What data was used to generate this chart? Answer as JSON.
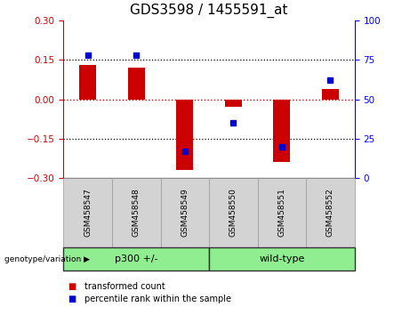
{
  "title": "GDS3598 / 1455591_at",
  "samples": [
    "GSM458547",
    "GSM458548",
    "GSM458549",
    "GSM458550",
    "GSM458551",
    "GSM458552"
  ],
  "transformed_count": [
    0.13,
    0.12,
    -0.27,
    -0.03,
    -0.24,
    0.04
  ],
  "percentile_rank": [
    78,
    78,
    17,
    35,
    20,
    62
  ],
  "ylim_left": [
    -0.3,
    0.3
  ],
  "ylim_right": [
    0,
    100
  ],
  "yticks_left": [
    -0.3,
    -0.15,
    0,
    0.15,
    0.3
  ],
  "yticks_right": [
    0,
    25,
    50,
    75,
    100
  ],
  "bar_color": "#cc0000",
  "point_color": "#0000cc",
  "groups": [
    {
      "label": "p300 +/-",
      "indices": [
        0,
        1,
        2
      ],
      "color": "#90ee90"
    },
    {
      "label": "wild-type",
      "indices": [
        3,
        4,
        5
      ],
      "color": "#90ee90"
    }
  ],
  "group_label_prefix": "genotype/variation",
  "legend_bar_label": "transformed count",
  "legend_point_label": "percentile rank within the sample",
  "hline_color": "#cc0000",
  "dotted_lines": [
    -0.15,
    0.15
  ],
  "background_plot": "#ffffff",
  "title_fontsize": 11
}
